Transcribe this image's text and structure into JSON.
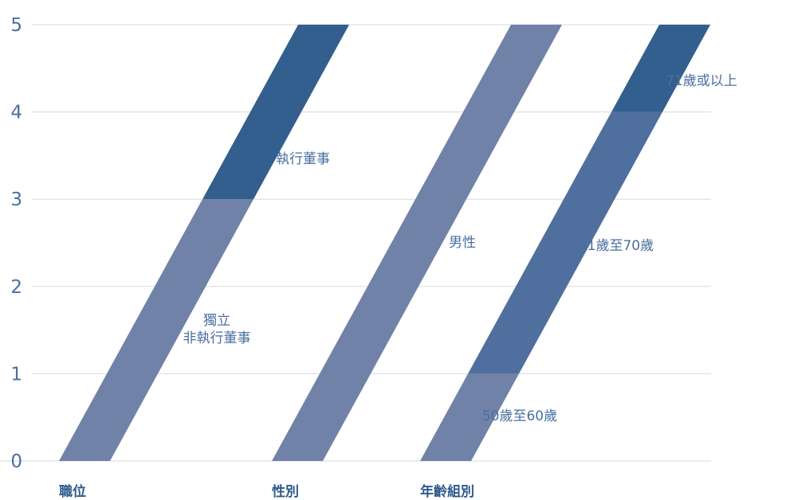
{
  "chart_data": {
    "type": "bar",
    "title": "",
    "xlabel": "",
    "ylabel": "",
    "ylim": [
      0,
      5
    ],
    "yticks": [
      0,
      1,
      2,
      3,
      4,
      5
    ],
    "grid": true,
    "legend": "none",
    "categories": [
      "職位",
      "性別",
      "年齡組別"
    ],
    "stacks": [
      {
        "category": "職位",
        "segments": [
          {
            "label_lines": [
              "獨立",
              "非執行董事"
            ],
            "value": 3,
            "color": "#7182a8"
          },
          {
            "label_lines": [
              "執行董事"
            ],
            "value": 2,
            "color": "#325f8e"
          }
        ]
      },
      {
        "category": "性別",
        "segments": [
          {
            "label_lines": [
              "男性"
            ],
            "value": 5,
            "color": "#7182a8"
          }
        ]
      },
      {
        "category": "年齡組別",
        "segments": [
          {
            "label_lines": [
              "50歲至60歲"
            ],
            "value": 1,
            "color": "#7182a8"
          },
          {
            "label_lines": [
              "61歲至70歲"
            ],
            "value": 3,
            "color": "#4f6f9e"
          },
          {
            "label_lines": [
              "71歲或以上"
            ],
            "value": 1,
            "color": "#325f8e"
          }
        ]
      }
    ]
  }
}
